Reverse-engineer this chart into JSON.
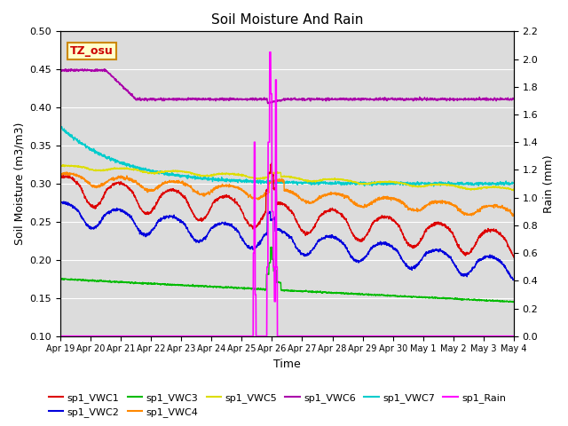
{
  "title": "Soil Moisture And Rain",
  "xlabel": "Time",
  "ylabel_left": "Soil Moisture (m3/m3)",
  "ylabel_right": "Rain (mm)",
  "ylim_left": [
    0.1,
    0.5
  ],
  "ylim_right": [
    0.0,
    2.2
  ],
  "site_label": "TZ_osu",
  "background_color": "#dcdcdc",
  "colors": {
    "VWC1": "#dd0000",
    "VWC2": "#0000dd",
    "VWC3": "#00bb00",
    "VWC4": "#ff8800",
    "VWC5": "#dddd00",
    "VWC6": "#aa00aa",
    "VWC7": "#00cccc",
    "Rain": "#ff00ff"
  },
  "tick_labels": [
    "Apr 19",
    "Apr 20",
    "Apr 21",
    "Apr 22",
    "Apr 23",
    "Apr 24",
    "Apr 25",
    "Apr 26",
    "Apr 27",
    "Apr 28",
    "Apr 29",
    "Apr 30",
    "May 1",
    "May 2",
    "May 3",
    "May 4"
  ],
  "yticks_left": [
    0.1,
    0.15,
    0.2,
    0.25,
    0.3,
    0.35,
    0.4,
    0.45,
    0.5
  ],
  "yticks_right": [
    0.0,
    0.2,
    0.4,
    0.6,
    0.8,
    1.0,
    1.2,
    1.4,
    1.6,
    1.8,
    2.0,
    2.2
  ],
  "legend": [
    "sp1_VWC1",
    "sp1_VWC2",
    "sp1_VWC3",
    "sp1_VWC4",
    "sp1_VWC5",
    "sp1_VWC6",
    "sp1_VWC7",
    "sp1_Rain"
  ]
}
